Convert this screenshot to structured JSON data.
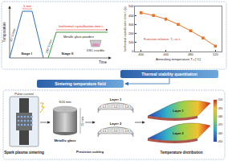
{
  "profile": {
    "y_label": "Temperature",
    "x_label": "Time",
    "hold": "5 min",
    "rate1": "40 °C/min",
    "rate2": "200 °C/min",
    "stage1": "Stage I",
    "stage2": "Stage II",
    "isothermal": "Isothermal crystallization time tₓ",
    "powder": "Metallic glass powders",
    "crucible": "DSC crucible"
  },
  "chart_data": {
    "type": "scatter",
    "x_label": "Annealing temperature Tₐ (°C)",
    "y_label": "Isothermal crystallization time tₓ (s)",
    "annotation": "Function relation: Tₐ vs tₓ",
    "x": [
      400,
      420,
      440,
      460,
      480,
      500,
      520
    ],
    "values": [
      430,
      400,
      360,
      300,
      230,
      150,
      60
    ],
    "errors": [
      12,
      10,
      12,
      10,
      9,
      8,
      6
    ],
    "color": "#e8742c",
    "marker": "square",
    "xlim": [
      390,
      530
    ],
    "xticks": [
      400,
      440,
      480,
      520
    ],
    "ylim": [
      0,
      500
    ],
    "yticks": [
      0,
      100,
      200,
      300,
      400,
      500
    ],
    "grid": false
  },
  "banner1": "Thermal stability quantitation",
  "banner2": "Sintering temperature field",
  "sintering": {
    "sps": "Spark plasma sintering",
    "pulse": "Pulse current",
    "glass": "Metallic glass",
    "diameter": "Φ20 mm",
    "height": "15 mm",
    "cutting": "Precision cutting",
    "layers": [
      "Layer 1",
      "Layer 2"
    ],
    "samples": [
      [
        "1-1",
        "1-2",
        "1-3"
      ],
      [
        "2-1",
        "2-2",
        "2-3"
      ]
    ],
    "distribution": "Temperature distribution",
    "colorbar_ticks": [
      450,
      460,
      470,
      480,
      490,
      500
    ]
  }
}
